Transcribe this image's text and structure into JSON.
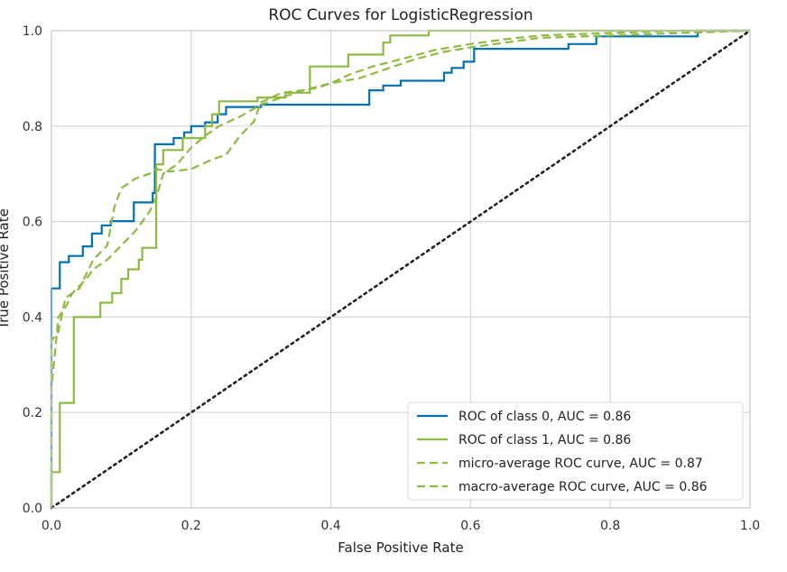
{
  "chart_data": {
    "type": "line",
    "title": "ROC Curves for LogisticRegression",
    "xlabel": "False Positive Rate",
    "ylabel": "True Positive Rate",
    "xlim": [
      0.0,
      1.0
    ],
    "ylim": [
      0.0,
      1.0
    ],
    "grid": true,
    "legend_position": "lower-right",
    "x_ticks": [
      "0.0",
      "0.2",
      "0.4",
      "0.6",
      "0.8",
      "1.0"
    ],
    "y_ticks": [
      "0.0",
      "0.2",
      "0.4",
      "0.6",
      "0.8",
      "1.0"
    ],
    "x_tick_values": [
      0.0,
      0.2,
      0.4,
      0.6,
      0.8,
      1.0
    ],
    "y_tick_values": [
      0.0,
      0.2,
      0.4,
      0.6,
      0.8,
      1.0
    ],
    "series": [
      {
        "name": "ROC of class 0, AUC = 0.86",
        "color": "#0072B2",
        "style": "solid",
        "points": [
          [
            0,
            0
          ],
          [
            0,
            0.46
          ],
          [
            0.012,
            0.46
          ],
          [
            0.012,
            0.515
          ],
          [
            0.025,
            0.515
          ],
          [
            0.025,
            0.528
          ],
          [
            0.045,
            0.528
          ],
          [
            0.045,
            0.548
          ],
          [
            0.058,
            0.548
          ],
          [
            0.058,
            0.575
          ],
          [
            0.072,
            0.575
          ],
          [
            0.072,
            0.592
          ],
          [
            0.085,
            0.592
          ],
          [
            0.085,
            0.601
          ],
          [
            0.118,
            0.601
          ],
          [
            0.118,
            0.64
          ],
          [
            0.145,
            0.64
          ],
          [
            0.145,
            0.66
          ],
          [
            0.148,
            0.66
          ],
          [
            0.148,
            0.762
          ],
          [
            0.175,
            0.762
          ],
          [
            0.175,
            0.775
          ],
          [
            0.19,
            0.775
          ],
          [
            0.19,
            0.787
          ],
          [
            0.2,
            0.787
          ],
          [
            0.2,
            0.8
          ],
          [
            0.22,
            0.8
          ],
          [
            0.22,
            0.808
          ],
          [
            0.238,
            0.808
          ],
          [
            0.238,
            0.825
          ],
          [
            0.25,
            0.825
          ],
          [
            0.25,
            0.84
          ],
          [
            0.3,
            0.84
          ],
          [
            0.3,
            0.845
          ],
          [
            0.455,
            0.845
          ],
          [
            0.455,
            0.875
          ],
          [
            0.475,
            0.875
          ],
          [
            0.475,
            0.885
          ],
          [
            0.5,
            0.885
          ],
          [
            0.5,
            0.895
          ],
          [
            0.562,
            0.895
          ],
          [
            0.562,
            0.912
          ],
          [
            0.573,
            0.912
          ],
          [
            0.573,
            0.922
          ],
          [
            0.59,
            0.922
          ],
          [
            0.59,
            0.935
          ],
          [
            0.605,
            0.935
          ],
          [
            0.605,
            0.962
          ],
          [
            0.74,
            0.962
          ],
          [
            0.74,
            0.972
          ],
          [
            0.78,
            0.972
          ],
          [
            0.78,
            0.988
          ],
          [
            0.925,
            0.988
          ],
          [
            0.925,
            1.0
          ],
          [
            1.0,
            1.0
          ]
        ]
      },
      {
        "name": "ROC of class 1, AUC = 0.86",
        "color": "#8EBA42",
        "style": "solid",
        "points": [
          [
            0,
            0
          ],
          [
            0,
            0.075
          ],
          [
            0.012,
            0.075
          ],
          [
            0.012,
            0.22
          ],
          [
            0.032,
            0.22
          ],
          [
            0.032,
            0.4
          ],
          [
            0.07,
            0.4
          ],
          [
            0.07,
            0.43
          ],
          [
            0.087,
            0.43
          ],
          [
            0.087,
            0.45
          ],
          [
            0.1,
            0.45
          ],
          [
            0.1,
            0.48
          ],
          [
            0.11,
            0.48
          ],
          [
            0.11,
            0.5
          ],
          [
            0.125,
            0.5
          ],
          [
            0.125,
            0.52
          ],
          [
            0.13,
            0.52
          ],
          [
            0.13,
            0.545
          ],
          [
            0.15,
            0.545
          ],
          [
            0.15,
            0.72
          ],
          [
            0.16,
            0.72
          ],
          [
            0.16,
            0.75
          ],
          [
            0.188,
            0.75
          ],
          [
            0.188,
            0.775
          ],
          [
            0.22,
            0.775
          ],
          [
            0.22,
            0.8
          ],
          [
            0.23,
            0.8
          ],
          [
            0.23,
            0.825
          ],
          [
            0.24,
            0.825
          ],
          [
            0.24,
            0.852
          ],
          [
            0.295,
            0.852
          ],
          [
            0.295,
            0.86
          ],
          [
            0.335,
            0.86
          ],
          [
            0.335,
            0.87
          ],
          [
            0.37,
            0.87
          ],
          [
            0.37,
            0.925
          ],
          [
            0.425,
            0.925
          ],
          [
            0.425,
            0.95
          ],
          [
            0.475,
            0.95
          ],
          [
            0.475,
            0.975
          ],
          [
            0.485,
            0.975
          ],
          [
            0.485,
            0.99
          ],
          [
            0.54,
            0.99
          ],
          [
            0.54,
            1.0
          ],
          [
            1.0,
            1.0
          ]
        ]
      },
      {
        "name": "micro-average ROC curve, AUC = 0.87",
        "color": "#8EBA42",
        "style": "dashed",
        "points": [
          [
            0,
            0
          ],
          [
            0,
            0.25
          ],
          [
            0.01,
            0.4
          ],
          [
            0.02,
            0.42
          ],
          [
            0.03,
            0.45
          ],
          [
            0.05,
            0.48
          ],
          [
            0.06,
            0.5
          ],
          [
            0.08,
            0.52
          ],
          [
            0.1,
            0.55
          ],
          [
            0.12,
            0.58
          ],
          [
            0.14,
            0.62
          ],
          [
            0.15,
            0.65
          ],
          [
            0.16,
            0.7
          ],
          [
            0.18,
            0.72
          ],
          [
            0.2,
            0.755
          ],
          [
            0.22,
            0.78
          ],
          [
            0.24,
            0.8
          ],
          [
            0.27,
            0.82
          ],
          [
            0.3,
            0.845
          ],
          [
            0.33,
            0.86
          ],
          [
            0.36,
            0.875
          ],
          [
            0.38,
            0.88
          ],
          [
            0.4,
            0.89
          ],
          [
            0.43,
            0.91
          ],
          [
            0.46,
            0.925
          ],
          [
            0.5,
            0.94
          ],
          [
            0.55,
            0.96
          ],
          [
            0.6,
            0.972
          ],
          [
            0.65,
            0.982
          ],
          [
            0.7,
            0.99
          ],
          [
            0.8,
            0.995
          ],
          [
            0.9,
            1.0
          ],
          [
            1.0,
            1.0
          ]
        ]
      },
      {
        "name": "macro-average ROC curve, AUC = 0.86",
        "color": "#8EBA42",
        "style": "dashed",
        "points": [
          [
            0,
            0
          ],
          [
            0,
            0.35
          ],
          [
            0.01,
            0.37
          ],
          [
            0.02,
            0.44
          ],
          [
            0.04,
            0.46
          ],
          [
            0.06,
            0.52
          ],
          [
            0.08,
            0.55
          ],
          [
            0.09,
            0.63
          ],
          [
            0.1,
            0.67
          ],
          [
            0.12,
            0.69
          ],
          [
            0.14,
            0.7
          ],
          [
            0.15,
            0.71
          ],
          [
            0.17,
            0.705
          ],
          [
            0.2,
            0.71
          ],
          [
            0.23,
            0.73
          ],
          [
            0.25,
            0.74
          ],
          [
            0.27,
            0.78
          ],
          [
            0.29,
            0.81
          ],
          [
            0.3,
            0.85
          ],
          [
            0.33,
            0.87
          ],
          [
            0.36,
            0.875
          ],
          [
            0.4,
            0.89
          ],
          [
            0.44,
            0.9
          ],
          [
            0.48,
            0.92
          ],
          [
            0.52,
            0.94
          ],
          [
            0.56,
            0.955
          ],
          [
            0.6,
            0.965
          ],
          [
            0.65,
            0.975
          ],
          [
            0.7,
            0.985
          ],
          [
            0.8,
            0.99
          ],
          [
            0.9,
            0.995
          ],
          [
            1.0,
            1.0
          ]
        ]
      },
      {
        "name": "chance",
        "color": "#222222",
        "style": "dotted",
        "points": [
          [
            0,
            0
          ],
          [
            1,
            1
          ]
        ]
      }
    ]
  }
}
